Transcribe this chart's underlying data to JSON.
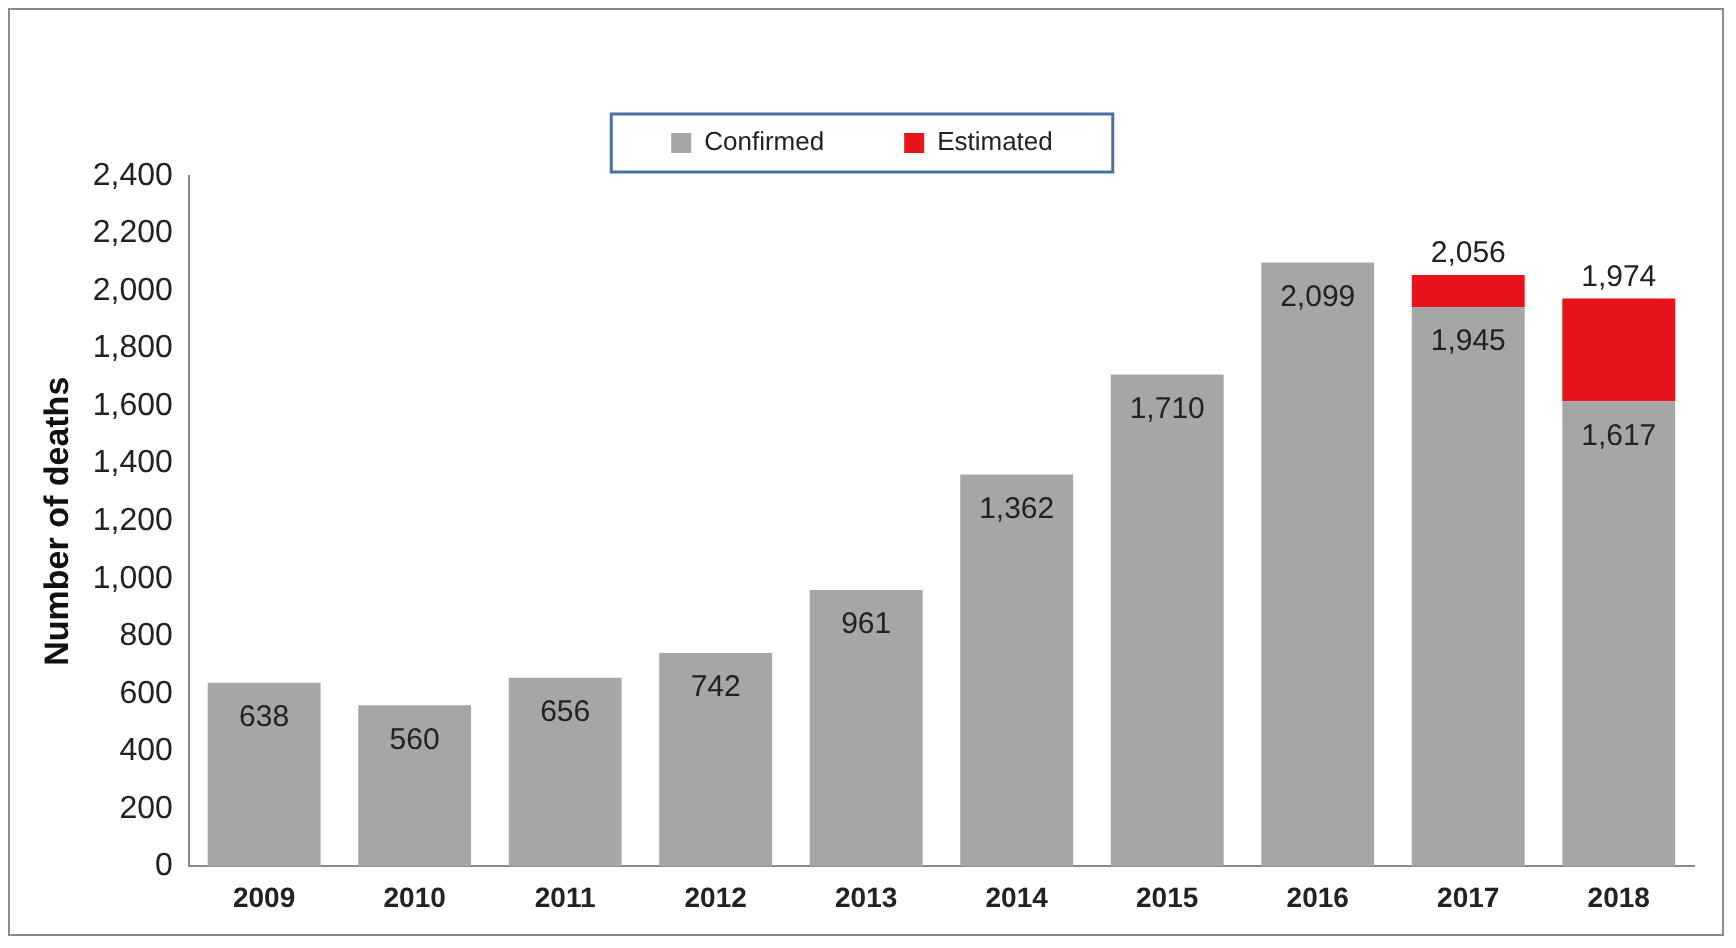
{
  "chart_data": {
    "type": "bar",
    "stacked": true,
    "ylabel": "Number of deaths",
    "categories": [
      "2009",
      "2010",
      "2011",
      "2012",
      "2013",
      "2014",
      "2015",
      "2016",
      "2017",
      "2018"
    ],
    "series": [
      {
        "name": "Confirmed",
        "color": "#a6a6a6",
        "values": [
          638,
          560,
          656,
          742,
          961,
          1362,
          1710,
          2099,
          1945,
          1617
        ],
        "value_labels": [
          "638",
          "560",
          "656",
          "742",
          "961",
          "1,362",
          "1,710",
          "2,099",
          "1,945",
          "1,617"
        ]
      },
      {
        "name": "Estimated",
        "color": "#e8141b",
        "values": [
          null,
          null,
          null,
          null,
          null,
          null,
          null,
          null,
          111,
          357
        ]
      }
    ],
    "totals": [
      null,
      null,
      null,
      null,
      null,
      null,
      null,
      null,
      "2,056",
      "1,974"
    ],
    "ylim": [
      0,
      2400
    ],
    "yticks": [
      0,
      200,
      400,
      600,
      800,
      {
        "value": 1000,
        "label": "1,000"
      },
      {
        "value": 1200,
        "label": "1,200"
      },
      {
        "value": 1400,
        "label": "1,400"
      },
      {
        "value": 1600,
        "label": "1,600"
      },
      {
        "value": 1800,
        "label": "1,800"
      },
      {
        "value": 2000,
        "label": "2,000"
      },
      {
        "value": 2200,
        "label": "2,200"
      },
      {
        "value": 2400,
        "label": "2,400"
      }
    ],
    "grid": false,
    "legend": "top"
  }
}
